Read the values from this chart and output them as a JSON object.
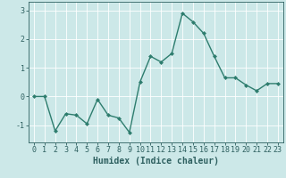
{
  "x": [
    0,
    1,
    2,
    3,
    4,
    5,
    6,
    7,
    8,
    9,
    10,
    11,
    12,
    13,
    14,
    15,
    16,
    17,
    18,
    19,
    20,
    21,
    22,
    23
  ],
  "y": [
    0.0,
    0.0,
    -1.2,
    -0.6,
    -0.65,
    -0.95,
    -0.1,
    -0.65,
    -0.75,
    -1.25,
    0.5,
    1.4,
    1.2,
    1.5,
    2.9,
    2.6,
    2.2,
    1.4,
    0.65,
    0.65,
    0.4,
    0.2,
    0.45,
    0.45
  ],
  "line_color": "#2e7d6e",
  "marker": "D",
  "markersize": 2.0,
  "linewidth": 1.0,
  "xlabel": "Humidex (Indice chaleur)",
  "ylim": [
    -1.6,
    3.3
  ],
  "xlim": [
    -0.5,
    23.5
  ],
  "bg_color": "#cce8e8",
  "grid_color": "#ffffff",
  "tick_label_color": "#2e6060",
  "xlabel_color": "#2e6060",
  "xlabel_fontsize": 7,
  "tick_fontsize": 6,
  "yticks": [
    -1,
    0,
    1,
    2,
    3
  ],
  "xticks": [
    0,
    1,
    2,
    3,
    4,
    5,
    6,
    7,
    8,
    9,
    10,
    11,
    12,
    13,
    14,
    15,
    16,
    17,
    18,
    19,
    20,
    21,
    22,
    23
  ]
}
